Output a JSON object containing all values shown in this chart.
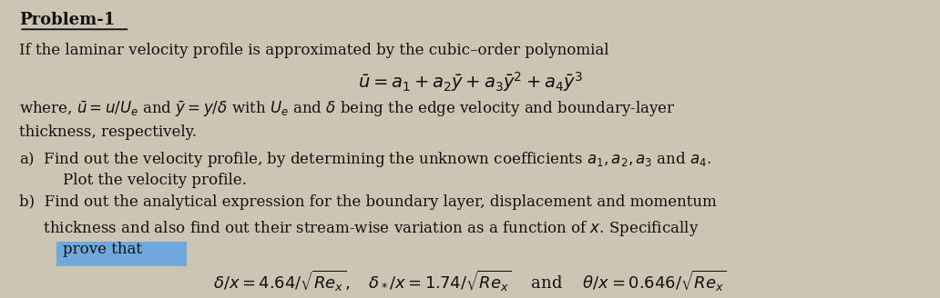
{
  "background_color": "#cdc5b4",
  "title": "Problem-1",
  "line1": "If the laminar velocity profile is approximated by the cubic–order polynomial",
  "line2_math": "$\\bar{u} = a_1 + a_2\\bar{y} + a_3\\bar{y}^2 + a_4\\bar{y}^3$",
  "line3": "where, $\\bar{u} = u/U_e$ and $\\bar{y} = y/\\delta$ with $U_e$ and $\\delta$ being the edge velocity and boundary-layer",
  "line4": "thickness, respectively.",
  "line5a": "a)  Find out the velocity profile, by determining the unknown coefficients $a_1, a_2, a_3$ and $a_4$.",
  "line5b": "     Plot the velocity profile.",
  "line6a": "b)  Find out the analytical expression for the boundary layer, displacement and momentum",
  "line6b": "     thickness and also find out their stream-wise variation as a function of $x$. Specifically",
  "line6c": "prove that",
  "line7_math": "$\\delta/x = 4.64/\\sqrt{Re_x},\\quad \\delta_*/x = 1.74/\\sqrt{Re_x}\\quad$ and $\\quad\\theta/x = 0.646/\\sqrt{Re_x}$",
  "highlight_color": "#6fa8dc",
  "text_color": "#111111",
  "font_size_title": 13,
  "font_size_body": 12,
  "font_size_math": 13
}
